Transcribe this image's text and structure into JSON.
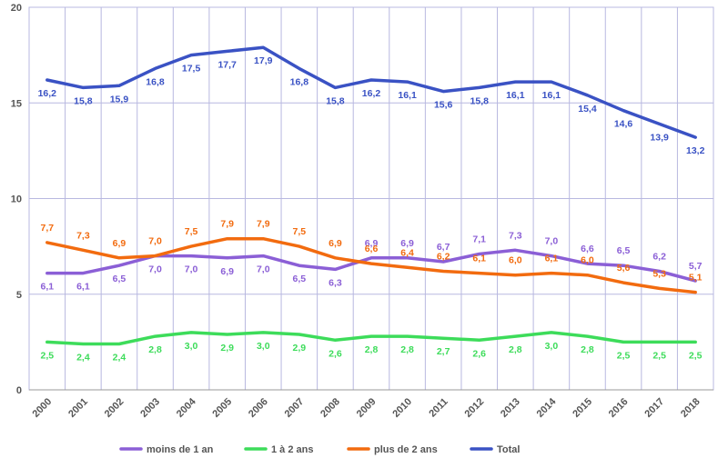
{
  "chart_data": {
    "type": "line",
    "categories": [
      "2000",
      "2001",
      "2002",
      "2003",
      "2004",
      "2005",
      "2006",
      "2007",
      "2008",
      "2009",
      "2010",
      "2011",
      "2012",
      "2013",
      "2014",
      "2015",
      "2016",
      "2017",
      "2018"
    ],
    "ylim": [
      0,
      20
    ],
    "y_ticks": [
      "0",
      "5",
      "10",
      "15",
      "20"
    ],
    "grid": true,
    "legend_position": "bottom",
    "series": [
      {
        "name": "moins de 1 an",
        "color": "#8b5fd6",
        "values": [
          6.1,
          6.1,
          6.5,
          7.0,
          7.0,
          6.9,
          7.0,
          6.5,
          6.3,
          6.9,
          6.9,
          6.7,
          7.1,
          7.3,
          7.0,
          6.6,
          6.5,
          6.2,
          5.7
        ],
        "labels": [
          "6,1",
          "6,1",
          "6,5",
          "7,0",
          "7,0",
          "6,9",
          "7,0",
          "6,5",
          "6,3",
          "6,9",
          "6,9",
          "6,7",
          "7,1",
          "7,3",
          "7,0",
          "6,6",
          "6,5",
          "6,2",
          "5,7"
        ]
      },
      {
        "name": "1 à 2 ans",
        "color": "#3ddc5a",
        "values": [
          2.5,
          2.4,
          2.4,
          2.8,
          3.0,
          2.9,
          3.0,
          2.9,
          2.6,
          2.8,
          2.8,
          2.7,
          2.6,
          2.8,
          3.0,
          2.8,
          2.5,
          2.5,
          2.5
        ],
        "labels": [
          "2,5",
          "2,4",
          "2,4",
          "2,8",
          "3,0",
          "2,9",
          "3,0",
          "2,9",
          "2,6",
          "2,8",
          "2,8",
          "2,7",
          "2,6",
          "2,8",
          "3,0",
          "2,8",
          "2,5",
          "2,5",
          "2,5"
        ]
      },
      {
        "name": "plus de 2 ans",
        "color": "#f26b0f",
        "values": [
          7.7,
          7.3,
          6.9,
          7.0,
          7.5,
          7.9,
          7.9,
          7.5,
          6.9,
          6.6,
          6.4,
          6.2,
          6.1,
          6.0,
          6.1,
          6.0,
          5.6,
          5.3,
          5.1
        ],
        "labels": [
          "7,7",
          "7,3",
          "6,9",
          "7,0",
          "7,5",
          "7,9",
          "7,9",
          "7,5",
          "6,9",
          "6,6",
          "6,4",
          "6,2",
          "6,1",
          "6,0",
          "6,1",
          "6,0",
          "5,6",
          "5,3",
          "5,1"
        ]
      },
      {
        "name": "Total",
        "color": "#3a52c4",
        "values": [
          16.2,
          15.8,
          15.9,
          16.8,
          17.5,
          17.7,
          17.9,
          16.8,
          15.8,
          16.2,
          16.1,
          15.6,
          15.8,
          16.1,
          16.1,
          15.4,
          14.6,
          13.9,
          13.2
        ],
        "labels": [
          "16,2",
          "15,8",
          "15,9",
          "16,8",
          "17,5",
          "17,7",
          "17,9",
          "16,8",
          "15,8",
          "16,2",
          "16,1",
          "15,6",
          "15,8",
          "16,1",
          "16,1",
          "15,4",
          "14,6",
          "13,9",
          "13,2"
        ]
      }
    ]
  }
}
